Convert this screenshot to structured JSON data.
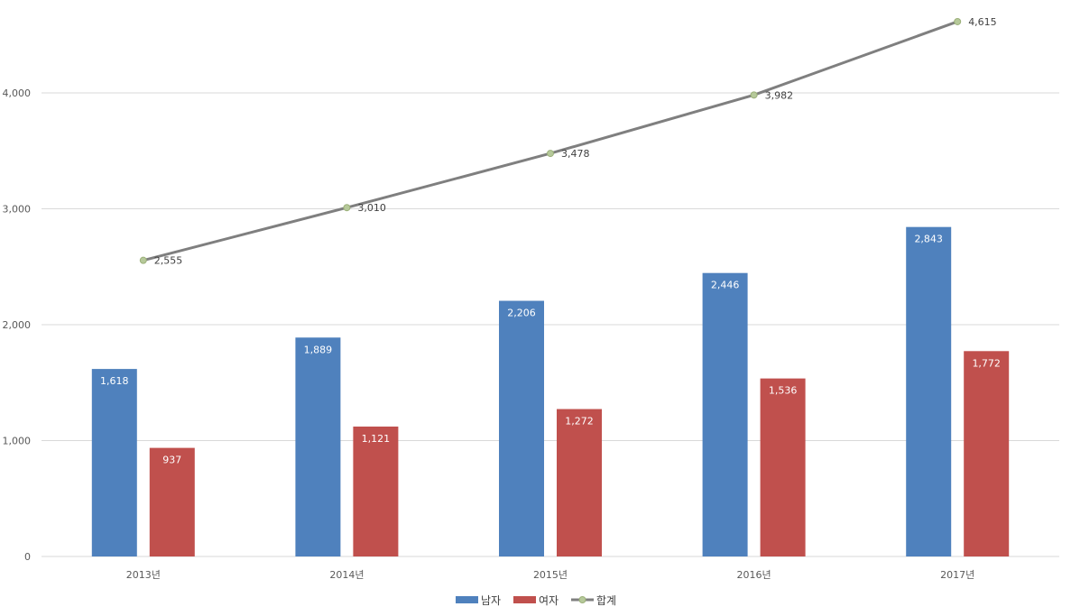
{
  "chart_data": {
    "type": "bar",
    "categories": [
      "2013년",
      "2014년",
      "2015년",
      "2016년",
      "2017년"
    ],
    "series": [
      {
        "name": "남자",
        "type": "bar",
        "color": "#4f81bd",
        "values": [
          1618,
          1889,
          2206,
          2446,
          2843
        ],
        "labels": [
          "1,618",
          "1,889",
          "2,206",
          "2,446",
          "2,843"
        ]
      },
      {
        "name": "여자",
        "type": "bar",
        "color": "#c0504d",
        "values": [
          937,
          1121,
          1272,
          1536,
          1772
        ],
        "labels": [
          "937",
          "1,121",
          "1,272",
          "1,536",
          "1,772"
        ]
      },
      {
        "name": "합계",
        "type": "line",
        "color": "#7f7f7f",
        "marker_color": "#b6c99a",
        "values": [
          2555,
          3010,
          3478,
          3982,
          4615
        ],
        "labels": [
          "2,555",
          "3,010",
          "3,478",
          "3,982",
          "4,615"
        ]
      }
    ],
    "y_ticks": [
      0,
      1000,
      2000,
      3000,
      4000
    ],
    "y_tick_labels": [
      "0",
      "1,000",
      "2,000",
      "3,000",
      "4,000"
    ],
    "ylim": [
      0,
      4615
    ],
    "grid": true,
    "legend_position": "bottom"
  }
}
